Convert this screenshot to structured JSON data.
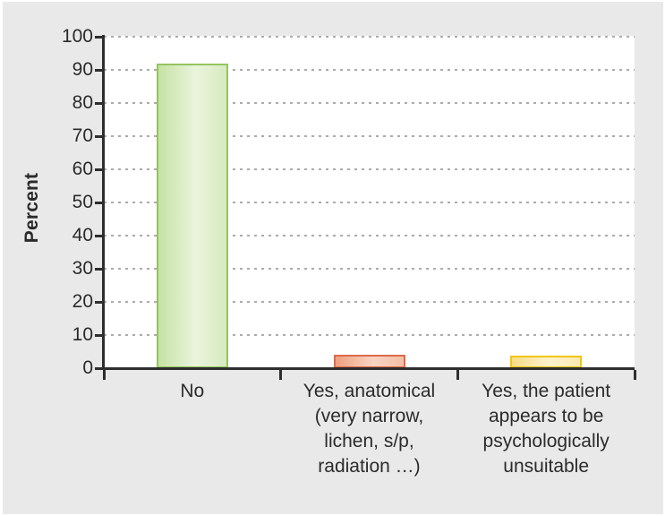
{
  "figure": {
    "background": "#ffffff",
    "panel_background": "#e9e9e9"
  },
  "chart_data": {
    "type": "bar",
    "title": "",
    "xlabel": "",
    "ylabel": "Percent",
    "categories": [
      [
        "No"
      ],
      [
        "Yes, anatomical",
        "(very narrow,",
        "lichen, s/p,",
        "radiation …)"
      ],
      [
        "Yes, the patient",
        "appears to be",
        "psychologically",
        "unsuitable"
      ]
    ],
    "values": [
      92,
      4,
      3.8
    ],
    "ylim": [
      0,
      100
    ],
    "yticks": [
      0,
      10,
      20,
      30,
      40,
      50,
      60,
      70,
      80,
      90,
      100
    ],
    "grid": "horizontal-dashed",
    "legend": null,
    "bars": [
      {
        "label": "No",
        "value": 92,
        "border": "#94c55f",
        "fill": [
          "#c6e2a4",
          "#eaf4dc",
          "#d7eabf"
        ]
      },
      {
        "label": "Yes, anatomical (very narrow, lichen, s/p, radiation …)",
        "value": 4,
        "border": "#dd6a4c",
        "fill": [
          "#eea180",
          "#f8d4c2",
          "#f3c0a6"
        ]
      },
      {
        "label": "Yes, the patient appears to be psychologically unsuitable",
        "value": 3.8,
        "border": "#f2c513",
        "fill": [
          "#f7dd86",
          "#fdf2cd",
          "#fbe9b0"
        ]
      }
    ],
    "colors": {
      "axis": "#2e2e2e",
      "grid": "#ababab",
      "text": "#2b2b2b",
      "plot_background": "#ffffff"
    }
  }
}
